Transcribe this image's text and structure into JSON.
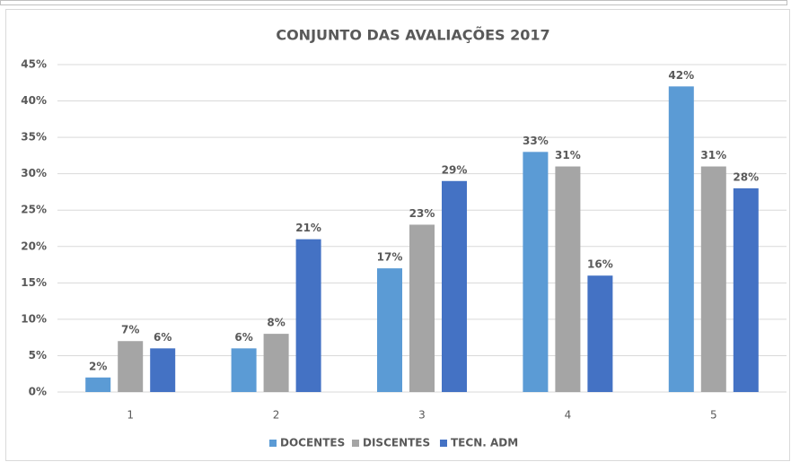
{
  "chart_data": {
    "type": "bar",
    "title": "CONJUNTO DAS AVALIAÇÕES 2017",
    "categories": [
      "1",
      "2",
      "3",
      "4",
      "5"
    ],
    "series": [
      {
        "name": "DOCENTES",
        "color": "#5b9bd5",
        "values": [
          2,
          6,
          17,
          33,
          42
        ],
        "value_labels": [
          "2%",
          "6%",
          "17%",
          "33%",
          "42%"
        ]
      },
      {
        "name": "DISCENTES",
        "color": "#a5a5a5",
        "values": [
          7,
          8,
          23,
          31,
          31
        ],
        "value_labels": [
          "7%",
          "8%",
          "23%",
          "31%",
          "31%"
        ]
      },
      {
        "name": "TECN. ADM",
        "color": "#4472c4",
        "values": [
          6,
          21,
          29,
          16,
          28
        ],
        "value_labels": [
          "6%",
          "21%",
          "29%",
          "16%",
          "28%"
        ]
      }
    ],
    "ylim": [
      0,
      45
    ],
    "yticks": [
      {
        "value": 0,
        "label": "0%"
      },
      {
        "value": 5,
        "label": "5%"
      },
      {
        "value": 10,
        "label": "10%"
      },
      {
        "value": 15,
        "label": "15%"
      },
      {
        "value": 20,
        "label": "20%"
      },
      {
        "value": 25,
        "label": "25%"
      },
      {
        "value": 30,
        "label": "30%"
      },
      {
        "value": 35,
        "label": "35%"
      },
      {
        "value": 40,
        "label": "40%"
      },
      {
        "value": 45,
        "label": "45%"
      }
    ],
    "grid": true,
    "legend": "bottom"
  }
}
